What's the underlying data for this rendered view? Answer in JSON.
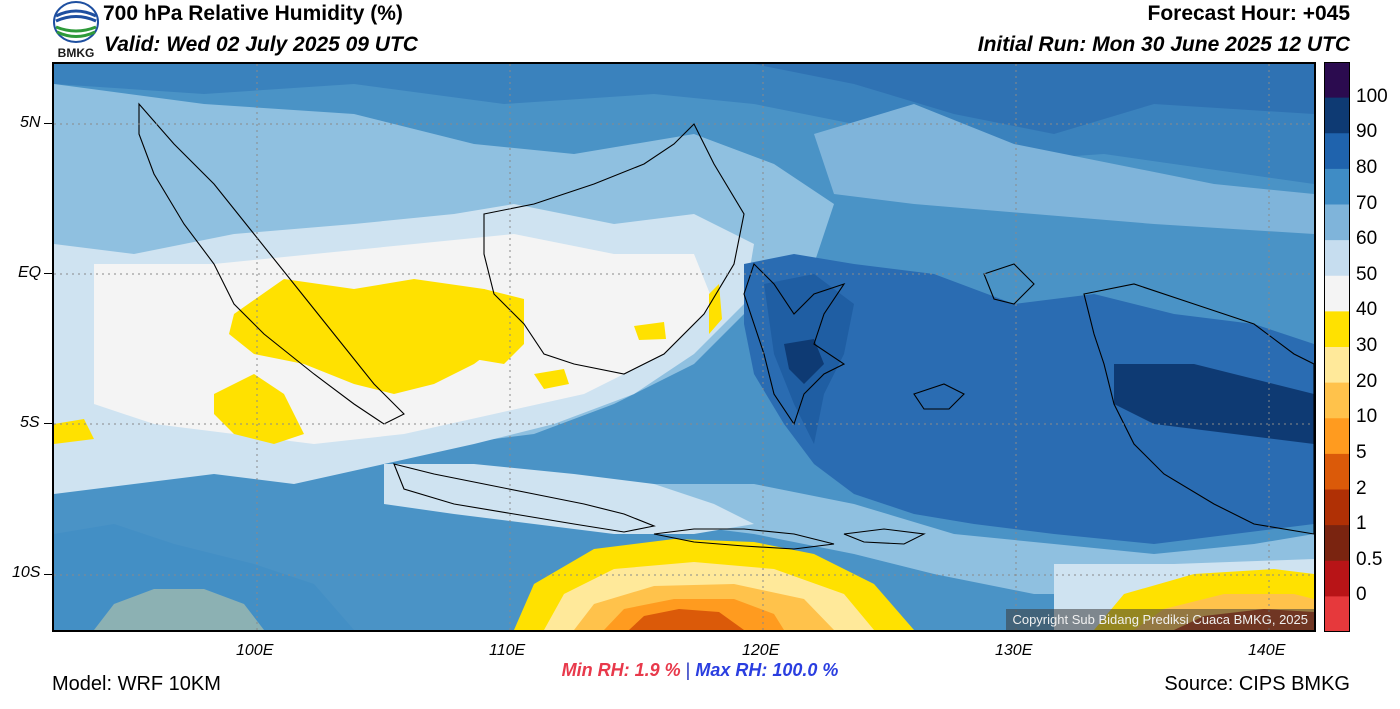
{
  "header": {
    "title": "700 hPa Relative Humidity (%)",
    "valid": "Valid: Wed 02 July 2025 09 UTC",
    "forecast_hour": "Forecast Hour: +045",
    "initial_run": "Initial Run: Mon 30 June 2025 12 UTC",
    "logo_text": "BMKG"
  },
  "axes": {
    "lat_labels": [
      "5N",
      "EQ",
      "5S",
      "10S"
    ],
    "lon_labels": [
      "100E",
      "110E",
      "120E",
      "130E",
      "140E"
    ]
  },
  "colorbar": {
    "labels": [
      "100",
      "90",
      "80",
      "70",
      "60",
      "50",
      "40",
      "30",
      "20",
      "10",
      "5",
      "2",
      "1",
      "0.5",
      "0"
    ],
    "colors": [
      "#2b0b4f",
      "#0e3a73",
      "#1f63ad",
      "#3f8cc5",
      "#7fb4da",
      "#c6ddef",
      "#f4f4f4",
      "#ffe100",
      "#ffe99a",
      "#ffc24b",
      "#ff9b1f",
      "#db5a09",
      "#b03005",
      "#7a2410",
      "#b81417",
      "#e6393c"
    ]
  },
  "copyright": "Copyright Sub Bidang Prediksi Cuaca BMKG, 2025",
  "stats": {
    "min_rh": "Min RH:   1.9 %",
    "separator": "|",
    "max_rh": "Max RH: 100.0 %"
  },
  "footer": {
    "model": "Model: WRF 10KM",
    "source": "Source: CIPS BMKG"
  }
}
